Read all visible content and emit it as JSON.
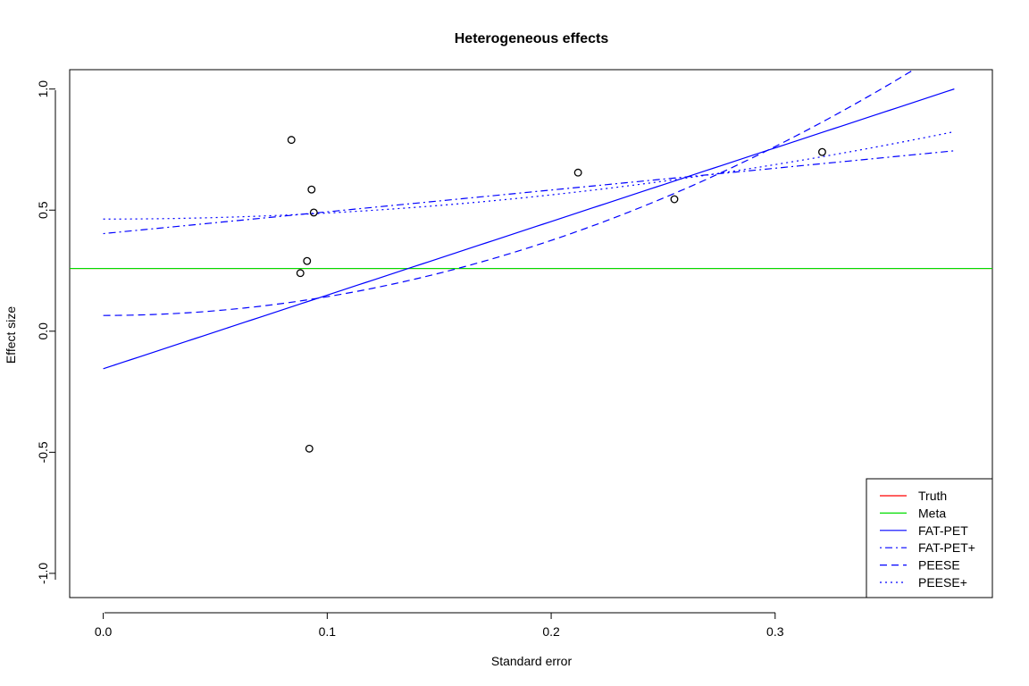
{
  "chart_data": {
    "type": "scatter",
    "title": "Heterogeneous effects",
    "xlabel": "Standard error",
    "ylabel": "Effect size",
    "xlim": [
      -0.015,
      0.397
    ],
    "ylim": [
      -1.1,
      1.08
    ],
    "xticks": [
      0.0,
      0.1,
      0.2,
      0.3
    ],
    "xtick_labels": [
      "0.0",
      "0.1",
      "0.2",
      "0.3"
    ],
    "yticks": [
      -1.0,
      -0.5,
      0.0,
      0.5,
      1.0
    ],
    "ytick_labels": [
      "-1.0",
      "-0.5",
      "0.0",
      "0.5",
      "1.0"
    ],
    "grid": false,
    "legend_position": "bottom-right",
    "points": {
      "x": [
        0.084,
        0.093,
        0.094,
        0.091,
        0.088,
        0.092,
        0.212,
        0.255,
        0.321
      ],
      "y": [
        0.79,
        0.585,
        0.49,
        0.29,
        0.24,
        -0.485,
        0.655,
        0.545,
        0.74
      ]
    },
    "series": [
      {
        "name": "Truth",
        "color": "#ff0000",
        "dash": "solid",
        "kind": "hline",
        "y": 0.259
      },
      {
        "name": "Meta",
        "color": "#00dd00",
        "dash": "solid",
        "kind": "hline",
        "y": 0.259
      },
      {
        "name": "FAT-PET",
        "color": "#0000ff",
        "dash": "solid",
        "kind": "linear",
        "intercept": -0.155,
        "slope": 3.04,
        "x_range": [
          0.0,
          0.38
        ]
      },
      {
        "name": "FAT-PET+",
        "color": "#0000ff",
        "dash": "dotdash",
        "kind": "linear",
        "intercept": 0.403,
        "slope": 0.9,
        "x_range": [
          0.0,
          0.38
        ]
      },
      {
        "name": "PEESE",
        "color": "#0000ff",
        "dash": "dashed",
        "kind": "quadratic",
        "intercept": 0.065,
        "coef": 7.75,
        "x_range": [
          0.0,
          0.38
        ]
      },
      {
        "name": "PEESE+",
        "color": "#0000ff",
        "dash": "dotted",
        "kind": "quadratic",
        "intercept": 0.463,
        "coef": 2.5,
        "x_range": [
          0.0,
          0.38
        ]
      }
    ]
  }
}
